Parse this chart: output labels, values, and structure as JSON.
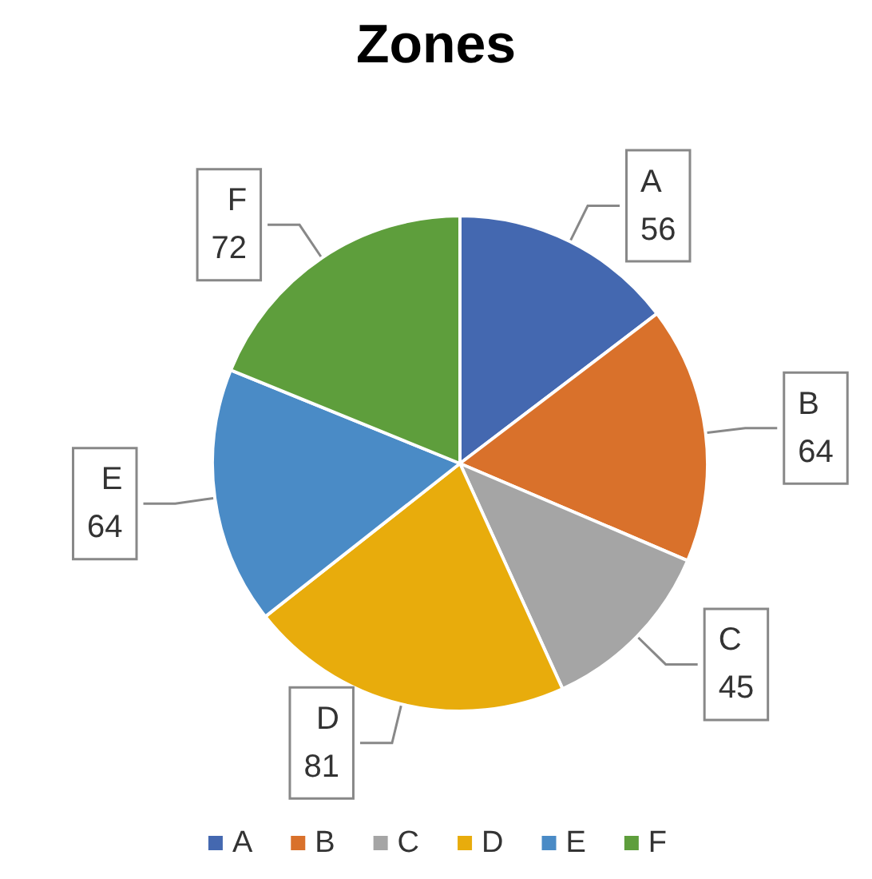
{
  "chart_data": {
    "type": "pie",
    "title": "Zones",
    "categories": [
      "A",
      "B",
      "C",
      "D",
      "E",
      "F"
    ],
    "values": [
      56,
      64,
      45,
      81,
      64,
      72
    ],
    "colors": [
      "#4468b0",
      "#d9712b",
      "#a5a5a5",
      "#e8ac0c",
      "#4a8bc6",
      "#5e9e3c"
    ],
    "data_labels": true,
    "legend": "bottom"
  }
}
